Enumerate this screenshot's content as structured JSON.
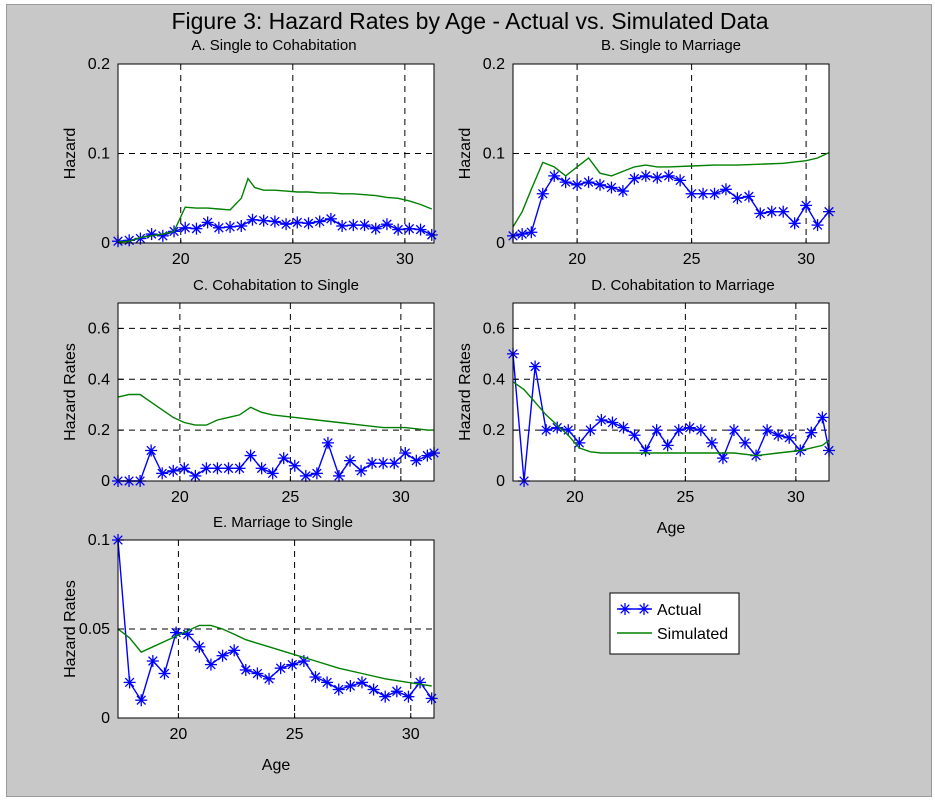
{
  "figure_title": "Figure 3:  Hazard Rates by Age - Actual vs. Simulated Data",
  "legend": {
    "entries": [
      "Actual",
      "Simulated"
    ],
    "placement": "lower-right empty panel area"
  },
  "colors": {
    "background": "#c8c8c8",
    "axes_background": "#ffffff",
    "actual": "#0000ff",
    "simulated": "#008000",
    "grid": "#000000"
  },
  "chart_data": [
    {
      "type": "line",
      "title": "A. Single to Cohabitation",
      "xlabel": "",
      "ylabel": "Hazard",
      "xlim": [
        17.2,
        31.3
      ],
      "ylim": [
        0,
        0.2
      ],
      "xticks": [
        "20",
        "25",
        "30"
      ],
      "yticks": [
        "0",
        "0.1",
        "0.2"
      ],
      "grid": true,
      "series": [
        {
          "name": "Actual",
          "marker": "star",
          "x": [
            17.2,
            17.7,
            18.2,
            18.7,
            19.2,
            19.7,
            20.2,
            20.7,
            21.2,
            21.7,
            22.2,
            22.7,
            23.2,
            23.7,
            24.2,
            24.7,
            25.2,
            25.7,
            26.2,
            26.7,
            27.2,
            27.7,
            28.2,
            28.7,
            29.2,
            29.7,
            30.2,
            30.7,
            31.2
          ],
          "y": [
            0.002,
            0.003,
            0.005,
            0.01,
            0.008,
            0.013,
            0.017,
            0.016,
            0.023,
            0.017,
            0.018,
            0.019,
            0.026,
            0.025,
            0.024,
            0.021,
            0.023,
            0.022,
            0.024,
            0.027,
            0.019,
            0.02,
            0.02,
            0.016,
            0.021,
            0.015,
            0.016,
            0.015,
            0.009
          ]
        },
        {
          "name": "Simulated",
          "marker": "none",
          "x": [
            17.2,
            17.7,
            18.2,
            18.7,
            19.2,
            19.7,
            20.2,
            20.7,
            21.2,
            21.7,
            22.2,
            22.7,
            23.0,
            23.3,
            23.7,
            24.2,
            24.7,
            25.2,
            25.7,
            26.2,
            26.7,
            27.2,
            27.7,
            28.2,
            28.7,
            29.2,
            29.7,
            30.2,
            30.7,
            31.2
          ],
          "y": [
            0.001,
            0.002,
            0.006,
            0.008,
            0.01,
            0.013,
            0.04,
            0.039,
            0.039,
            0.038,
            0.037,
            0.05,
            0.072,
            0.062,
            0.059,
            0.059,
            0.058,
            0.057,
            0.057,
            0.056,
            0.056,
            0.055,
            0.055,
            0.054,
            0.053,
            0.051,
            0.05,
            0.047,
            0.043,
            0.038
          ]
        }
      ]
    },
    {
      "type": "line",
      "title": "B. Single to Marriage",
      "xlabel": "",
      "ylabel": "Hazard",
      "xlim": [
        17.2,
        31.0
      ],
      "ylim": [
        0,
        0.2
      ],
      "xticks": [
        "20",
        "25",
        "30"
      ],
      "yticks": [
        "0",
        "0.1",
        "0.2"
      ],
      "grid": true,
      "series": [
        {
          "name": "Actual",
          "marker": "star",
          "x": [
            17.2,
            17.6,
            18.0,
            18.5,
            19.0,
            19.5,
            20.0,
            20.5,
            21.0,
            21.5,
            22.0,
            22.5,
            23.0,
            23.5,
            24.0,
            24.5,
            25.0,
            25.5,
            26.0,
            26.5,
            27.0,
            27.5,
            28.0,
            28.5,
            29.0,
            29.5,
            30.0,
            30.5,
            31.0
          ],
          "y": [
            0.008,
            0.01,
            0.012,
            0.055,
            0.075,
            0.068,
            0.065,
            0.068,
            0.065,
            0.062,
            0.058,
            0.072,
            0.075,
            0.073,
            0.075,
            0.07,
            0.055,
            0.055,
            0.055,
            0.06,
            0.05,
            0.052,
            0.033,
            0.035,
            0.035,
            0.022,
            0.042,
            0.02,
            0.035
          ]
        },
        {
          "name": "Simulated",
          "marker": "none",
          "x": [
            17.2,
            17.6,
            18.0,
            18.5,
            19.0,
            19.5,
            20.0,
            20.5,
            21.0,
            21.5,
            22.0,
            22.5,
            23.0,
            23.5,
            24.0,
            25.0,
            26.0,
            27.0,
            28.0,
            29.0,
            30.0,
            30.5,
            31.0
          ],
          "y": [
            0.018,
            0.035,
            0.06,
            0.09,
            0.085,
            0.075,
            0.085,
            0.095,
            0.078,
            0.075,
            0.08,
            0.085,
            0.087,
            0.085,
            0.085,
            0.086,
            0.087,
            0.087,
            0.088,
            0.089,
            0.092,
            0.095,
            0.101
          ]
        }
      ]
    },
    {
      "type": "line",
      "title": "C. Cohabitation to Single",
      "xlabel": "",
      "ylabel": "Hazard Rates",
      "xlim": [
        17.2,
        31.5
      ],
      "ylim": [
        0,
        0.7
      ],
      "xticks": [
        "20",
        "25",
        "30"
      ],
      "yticks": [
        "0",
        "0.2",
        "0.4",
        "0.6"
      ],
      "grid": true,
      "series": [
        {
          "name": "Actual",
          "marker": "star",
          "x": [
            17.2,
            17.7,
            18.2,
            18.7,
            19.2,
            19.7,
            20.2,
            20.7,
            21.2,
            21.7,
            22.2,
            22.7,
            23.2,
            23.7,
            24.2,
            24.7,
            25.2,
            25.7,
            26.2,
            26.7,
            27.2,
            27.7,
            28.2,
            28.7,
            29.2,
            29.7,
            30.2,
            30.7,
            31.2,
            31.5
          ],
          "y": [
            0,
            0,
            0,
            0.12,
            0.03,
            0.04,
            0.05,
            0.02,
            0.05,
            0.05,
            0.05,
            0.05,
            0.1,
            0.05,
            0.03,
            0.09,
            0.06,
            0.02,
            0.03,
            0.15,
            0.02,
            0.08,
            0.04,
            0.07,
            0.07,
            0.07,
            0.11,
            0.08,
            0.1,
            0.11
          ]
        },
        {
          "name": "Simulated",
          "marker": "none",
          "x": [
            17.2,
            17.7,
            18.2,
            18.7,
            19.2,
            19.7,
            20.2,
            20.7,
            21.2,
            21.7,
            22.2,
            22.7,
            23.2,
            23.7,
            24.2,
            25.2,
            26.2,
            27.2,
            28.2,
            29.2,
            30.2,
            31.2,
            31.5
          ],
          "y": [
            0.33,
            0.34,
            0.34,
            0.31,
            0.28,
            0.25,
            0.23,
            0.22,
            0.22,
            0.24,
            0.25,
            0.26,
            0.29,
            0.27,
            0.26,
            0.25,
            0.24,
            0.23,
            0.22,
            0.21,
            0.21,
            0.2,
            0.2
          ]
        }
      ]
    },
    {
      "type": "line",
      "title": "D. Cohabitation to Marriage",
      "xlabel": "Age",
      "ylabel": "Hazard Rates",
      "xlim": [
        17.2,
        31.5
      ],
      "ylim": [
        0,
        0.7
      ],
      "xticks": [
        "20",
        "25",
        "30"
      ],
      "yticks": [
        "0",
        "0.2",
        "0.4",
        "0.6"
      ],
      "grid": true,
      "series": [
        {
          "name": "Actual",
          "marker": "star",
          "x": [
            17.2,
            17.7,
            18.2,
            18.7,
            19.2,
            19.7,
            20.2,
            20.7,
            21.2,
            21.7,
            22.2,
            22.7,
            23.2,
            23.7,
            24.2,
            24.7,
            25.2,
            25.7,
            26.2,
            26.7,
            27.2,
            27.7,
            28.2,
            28.7,
            29.2,
            29.7,
            30.2,
            30.7,
            31.2,
            31.5
          ],
          "y": [
            0.5,
            0,
            0.45,
            0.2,
            0.21,
            0.2,
            0.15,
            0.2,
            0.24,
            0.23,
            0.21,
            0.18,
            0.12,
            0.2,
            0.14,
            0.2,
            0.21,
            0.2,
            0.15,
            0.09,
            0.2,
            0.15,
            0.1,
            0.2,
            0.18,
            0.17,
            0.12,
            0.19,
            0.25,
            0.12
          ]
        },
        {
          "name": "Simulated",
          "marker": "none",
          "x": [
            17.2,
            17.7,
            18.2,
            18.7,
            19.2,
            19.7,
            20.2,
            20.7,
            21.2,
            22.2,
            23.2,
            24.2,
            25.2,
            26.2,
            27.2,
            28.2,
            29.2,
            30.2,
            31.2,
            31.5
          ],
          "y": [
            0.39,
            0.36,
            0.31,
            0.26,
            0.22,
            0.18,
            0.13,
            0.115,
            0.11,
            0.11,
            0.11,
            0.11,
            0.11,
            0.11,
            0.11,
            0.1,
            0.11,
            0.12,
            0.14,
            0.16
          ]
        }
      ]
    },
    {
      "type": "line",
      "title": "E. Marriage to Single",
      "xlabel": "Age",
      "ylabel": "Hazard Rates",
      "xlim": [
        17.4,
        31.0
      ],
      "ylim": [
        0,
        0.1
      ],
      "xticks": [
        "20",
        "25",
        "30"
      ],
      "yticks": [
        "0",
        "0.05",
        "0.1"
      ],
      "grid": true,
      "series": [
        {
          "name": "Actual",
          "marker": "star",
          "x": [
            17.4,
            17.9,
            18.4,
            18.9,
            19.4,
            19.9,
            20.4,
            20.9,
            21.4,
            21.9,
            22.4,
            22.9,
            23.4,
            23.9,
            24.4,
            24.9,
            25.4,
            25.9,
            26.4,
            26.9,
            27.4,
            27.9,
            28.4,
            28.9,
            29.4,
            29.9,
            30.4,
            30.9
          ],
          "y": [
            0.1,
            0.02,
            0.01,
            0.032,
            0.025,
            0.048,
            0.047,
            0.04,
            0.03,
            0.035,
            0.038,
            0.027,
            0.025,
            0.022,
            0.028,
            0.03,
            0.032,
            0.023,
            0.02,
            0.016,
            0.018,
            0.02,
            0.016,
            0.012,
            0.015,
            0.012,
            0.02,
            0.011
          ]
        },
        {
          "name": "Simulated",
          "marker": "none",
          "x": [
            17.4,
            17.9,
            18.4,
            18.9,
            19.4,
            19.9,
            20.4,
            20.9,
            21.4,
            21.9,
            22.4,
            22.9,
            23.9,
            24.9,
            25.9,
            26.9,
            27.9,
            28.9,
            29.9,
            30.9
          ],
          "y": [
            0.05,
            0.045,
            0.037,
            0.04,
            0.043,
            0.046,
            0.049,
            0.052,
            0.052,
            0.05,
            0.047,
            0.044,
            0.04,
            0.036,
            0.032,
            0.028,
            0.025,
            0.022,
            0.02,
            0.018
          ]
        }
      ]
    }
  ]
}
